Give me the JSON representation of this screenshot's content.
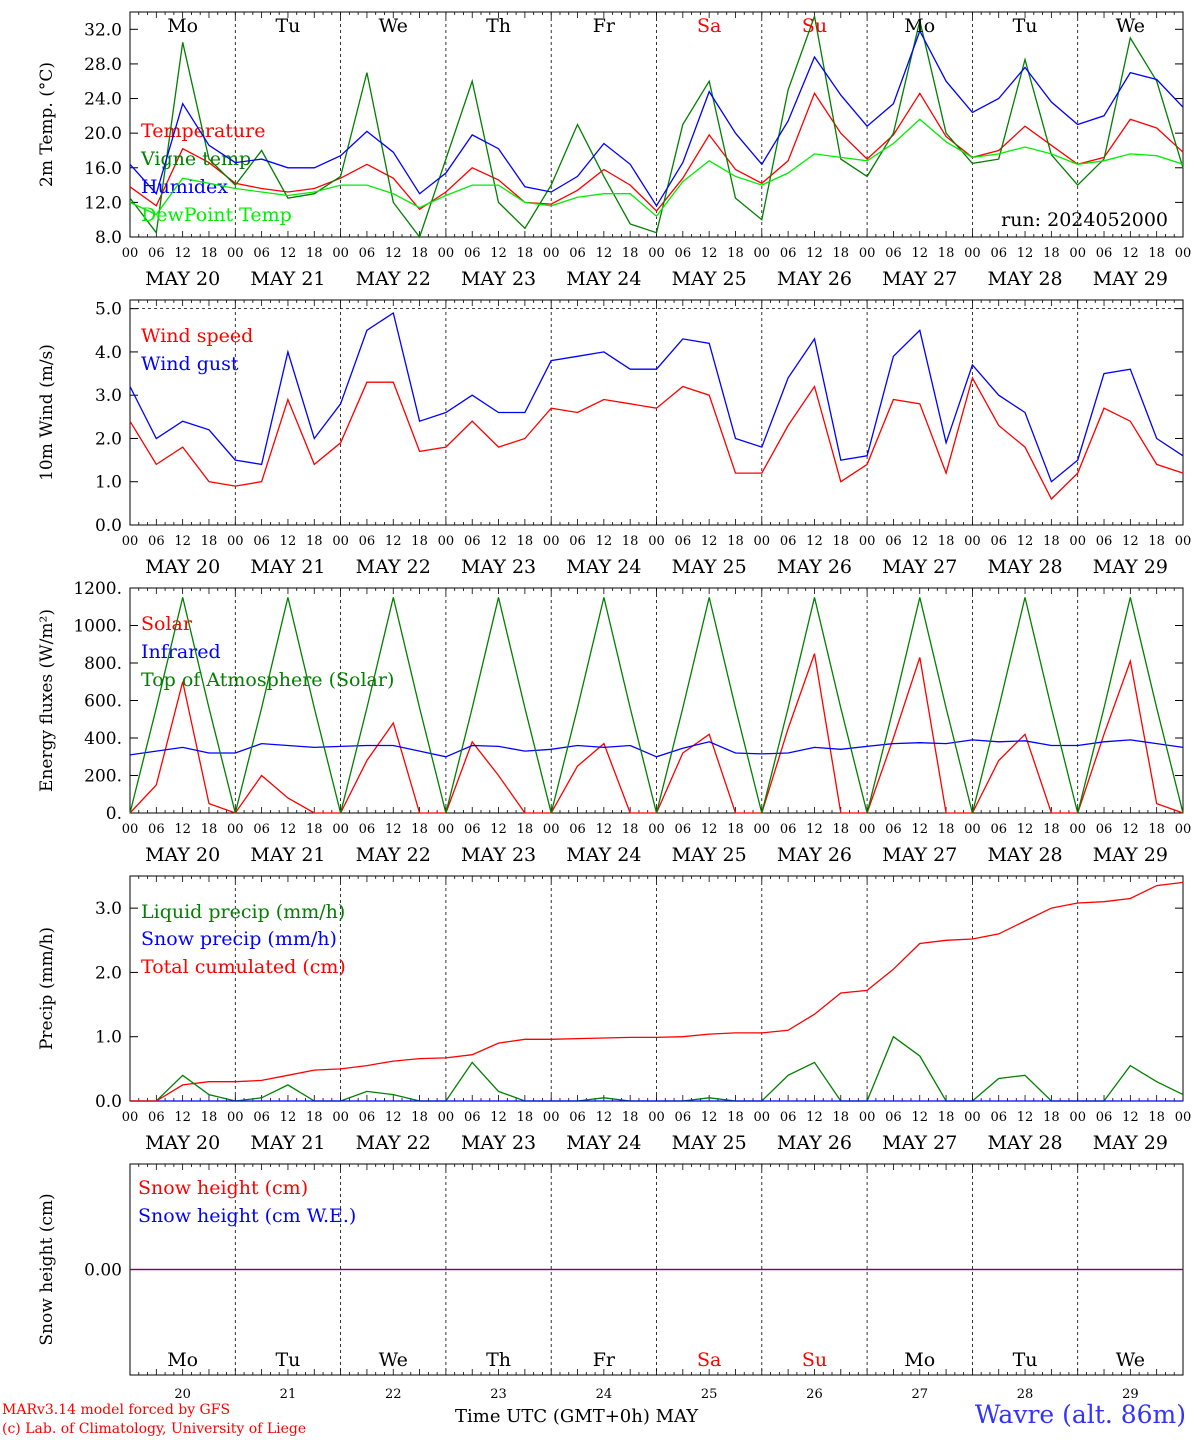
{
  "run_label": "run: 2024052000",
  "x_axis_title": "Time UTC (GMT+0h)",
  "month_label": "MAY",
  "station": "Wavre (alt. 86m)",
  "credits": [
    "MARv3.14 model forced by GFS",
    "(c) Lab. of Climatology, University of Liege"
  ],
  "days": [
    {
      "abbr": "Mo",
      "date": "MAY 20",
      "num": "20",
      "weekend": false
    },
    {
      "abbr": "Tu",
      "date": "MAY 21",
      "num": "21",
      "weekend": false
    },
    {
      "abbr": "We",
      "date": "MAY 22",
      "num": "22",
      "weekend": false
    },
    {
      "abbr": "Th",
      "date": "MAY 23",
      "num": "23",
      "weekend": false
    },
    {
      "abbr": "Fr",
      "date": "MAY 24",
      "num": "24",
      "weekend": false
    },
    {
      "abbr": "Sa",
      "date": "MAY 25",
      "num": "25",
      "weekend": true
    },
    {
      "abbr": "Su",
      "date": "MAY 26",
      "num": "26",
      "weekend": true
    },
    {
      "abbr": "Mo",
      "date": "MAY 27",
      "num": "27",
      "weekend": false
    },
    {
      "abbr": "Tu",
      "date": "MAY 28",
      "num": "28",
      "weekend": false
    },
    {
      "abbr": "We",
      "date": "MAY 29",
      "num": "29",
      "weekend": false
    }
  ],
  "hour_ticks": [
    "00",
    "06",
    "12",
    "18"
  ],
  "colors": {
    "red": "#ff0000",
    "blue": "#0000ff",
    "green": "#007f00",
    "lightgreen": "#00ee00",
    "purple": "#7f007f"
  },
  "chart_data": [
    {
      "type": "line",
      "ylabel": "2m Temp. (°C)",
      "ylim": [
        8,
        34
      ],
      "yticks": [
        "8.0",
        "12.0",
        "16.0",
        "20.0",
        "24.0",
        "28.0",
        "32.0"
      ],
      "ytick_values": [
        8,
        12,
        16,
        20,
        24,
        28,
        32
      ],
      "x_unit": "hours since May 20 00 UTC",
      "x": [
        0,
        6,
        12,
        18,
        24,
        30,
        36,
        42,
        48,
        54,
        60,
        66,
        72,
        78,
        84,
        90,
        96,
        102,
        108,
        114,
        120,
        126,
        132,
        138,
        144,
        150,
        156,
        162,
        168,
        174,
        180,
        186,
        192,
        198,
        204,
        210,
        216,
        222,
        228,
        234,
        240
      ],
      "series": [
        {
          "name": "Temperature",
          "color": "red",
          "values": [
            13.8,
            11.6,
            18.2,
            16.6,
            14.2,
            13.6,
            13.2,
            13.6,
            14.8,
            16.4,
            14.8,
            11.2,
            13.2,
            16.0,
            14.6,
            12.0,
            11.8,
            13.4,
            15.8,
            14.0,
            11.0,
            14.8,
            19.8,
            15.8,
            14.2,
            16.8,
            24.6,
            20.0,
            17.0,
            19.8,
            24.6,
            19.6,
            17.2,
            18.0,
            20.8,
            18.6,
            16.4,
            17.2,
            21.6,
            20.6,
            17.8
          ]
        },
        {
          "name": "Vigne temp",
          "color": "green",
          "values": [
            12.5,
            8.5,
            30.5,
            17.0,
            14.0,
            18.0,
            12.5,
            13.0,
            15.0,
            27.0,
            12.0,
            8.0,
            17.0,
            26.0,
            12.0,
            9.0,
            14.0,
            21.0,
            15.0,
            9.5,
            8.5,
            21.0,
            26.0,
            12.5,
            10.0,
            25.0,
            33.5,
            17.0,
            15.0,
            20.0,
            33.0,
            20.0,
            16.5,
            17.0,
            28.5,
            17.5,
            14.0,
            17.0,
            31.0,
            26.0,
            16.0
          ]
        },
        {
          "name": "Humidex",
          "color": "blue",
          "values": [
            16.4,
            13.0,
            23.4,
            18.6,
            16.6,
            17.0,
            16.0,
            16.0,
            17.4,
            20.2,
            17.8,
            13.0,
            15.4,
            19.8,
            18.2,
            13.8,
            13.2,
            15.0,
            18.8,
            16.4,
            11.6,
            16.6,
            24.8,
            20.0,
            16.4,
            21.4,
            28.8,
            24.4,
            20.8,
            23.4,
            31.8,
            26.0,
            22.4,
            24.0,
            27.6,
            23.6,
            21.0,
            22.0,
            27.0,
            26.2,
            23.0
          ]
        },
        {
          "name": "DewPoint Temp",
          "color": "lightgreen",
          "values": [
            12.0,
            10.6,
            14.8,
            14.2,
            13.6,
            13.2,
            12.8,
            13.2,
            14.0,
            14.0,
            13.0,
            11.4,
            12.8,
            14.0,
            14.0,
            12.0,
            11.6,
            12.6,
            13.0,
            13.0,
            10.4,
            14.4,
            16.8,
            15.0,
            14.0,
            15.4,
            17.6,
            17.2,
            16.8,
            18.8,
            21.6,
            19.0,
            17.2,
            17.6,
            18.4,
            17.6,
            16.4,
            16.8,
            17.6,
            17.4,
            16.4
          ]
        }
      ]
    },
    {
      "type": "line",
      "ylabel": "10m Wind (m/s)",
      "ylim": [
        0,
        5.2
      ],
      "reference_line": 5.0,
      "yticks": [
        "0.0",
        "1.0",
        "2.0",
        "3.0",
        "4.0",
        "5.0"
      ],
      "ytick_values": [
        0,
        1,
        2,
        3,
        4,
        5
      ],
      "x": [
        0,
        6,
        12,
        18,
        24,
        30,
        36,
        42,
        48,
        54,
        60,
        66,
        72,
        78,
        84,
        90,
        96,
        102,
        108,
        114,
        120,
        126,
        132,
        138,
        144,
        150,
        156,
        162,
        168,
        174,
        180,
        186,
        192,
        198,
        204,
        210,
        216,
        222,
        228,
        234,
        240
      ],
      "series": [
        {
          "name": "Wind speed",
          "color": "red",
          "values": [
            2.4,
            1.4,
            1.8,
            1.0,
            0.9,
            1.0,
            2.9,
            1.4,
            1.9,
            3.3,
            3.3,
            1.7,
            1.8,
            2.4,
            1.8,
            2.0,
            2.7,
            2.6,
            2.9,
            2.8,
            2.7,
            3.2,
            3.0,
            1.2,
            1.2,
            2.3,
            3.2,
            1.0,
            1.4,
            2.9,
            2.8,
            1.2,
            3.4,
            2.3,
            1.8,
            0.6,
            1.2,
            2.7,
            2.4,
            1.4,
            1.2
          ]
        },
        {
          "name": "Wind gust",
          "color": "blue",
          "values": [
            3.2,
            2.0,
            2.4,
            2.2,
            1.5,
            1.4,
            4.0,
            2.0,
            2.8,
            4.5,
            4.9,
            2.4,
            2.6,
            3.0,
            2.6,
            2.6,
            3.8,
            3.9,
            4.0,
            3.6,
            3.6,
            4.3,
            4.2,
            2.0,
            1.8,
            3.4,
            4.3,
            1.5,
            1.6,
            3.9,
            4.5,
            1.9,
            3.7,
            3.0,
            2.6,
            1.0,
            1.5,
            3.5,
            3.6,
            2.0,
            1.6
          ]
        }
      ]
    },
    {
      "type": "line",
      "ylabel": "Energy fluxes (W/m²)",
      "ylim": [
        0,
        1200
      ],
      "yticks": [
        "0.",
        "200.",
        "400.",
        "600.",
        "800.",
        "1000.",
        "1200."
      ],
      "ytick_values": [
        0,
        200,
        400,
        600,
        800,
        1000,
        1200
      ],
      "x": [
        0,
        6,
        12,
        18,
        24,
        30,
        36,
        42,
        48,
        54,
        60,
        66,
        72,
        78,
        84,
        90,
        96,
        102,
        108,
        114,
        120,
        126,
        132,
        138,
        144,
        150,
        156,
        162,
        168,
        174,
        180,
        186,
        192,
        198,
        204,
        210,
        216,
        222,
        228,
        234,
        240
      ],
      "series": [
        {
          "name": "Solar",
          "color": "red",
          "values": [
            0,
            150,
            700,
            50,
            0,
            200,
            80,
            0,
            0,
            280,
            480,
            0,
            0,
            380,
            200,
            0,
            0,
            250,
            370,
            0,
            0,
            320,
            420,
            0,
            0,
            450,
            850,
            0,
            0,
            400,
            830,
            0,
            0,
            280,
            420,
            0,
            0,
            420,
            810,
            50,
            0
          ]
        },
        {
          "name": "Infrared",
          "color": "blue",
          "values": [
            310,
            330,
            350,
            320,
            320,
            370,
            360,
            350,
            355,
            360,
            360,
            330,
            300,
            360,
            355,
            330,
            340,
            360,
            350,
            360,
            300,
            345,
            380,
            320,
            315,
            320,
            350,
            340,
            355,
            370,
            375,
            370,
            390,
            380,
            385,
            360,
            360,
            380,
            390,
            370,
            350
          ]
        },
        {
          "name": "Top of Atmosphere (Solar)",
          "color": "green",
          "values": [
            0,
            560,
            1150,
            560,
            0,
            560,
            1150,
            560,
            0,
            560,
            1150,
            560,
            0,
            560,
            1150,
            560,
            0,
            560,
            1150,
            560,
            0,
            560,
            1150,
            560,
            0,
            560,
            1150,
            560,
            0,
            560,
            1150,
            560,
            0,
            560,
            1150,
            560,
            0,
            560,
            1150,
            560,
            0
          ]
        }
      ]
    },
    {
      "type": "line",
      "ylabel": "Precip (mm/h)",
      "ylim": [
        0,
        3.5
      ],
      "yticks": [
        "0.0",
        "1.0",
        "2.0",
        "3.0"
      ],
      "ytick_values": [
        0,
        1,
        2,
        3
      ],
      "x": [
        0,
        6,
        12,
        18,
        24,
        30,
        36,
        42,
        48,
        54,
        60,
        66,
        72,
        78,
        84,
        90,
        96,
        102,
        108,
        114,
        120,
        126,
        132,
        138,
        144,
        150,
        156,
        162,
        168,
        174,
        180,
        186,
        192,
        198,
        204,
        210,
        216,
        222,
        228,
        234,
        240
      ],
      "series": [
        {
          "name": "Liquid precip (mm/h)",
          "color": "green",
          "values": [
            0,
            0,
            0.4,
            0.1,
            0,
            0.05,
            0.25,
            0,
            0,
            0.15,
            0.1,
            0,
            0,
            0.6,
            0.15,
            0,
            0,
            0,
            0.05,
            0,
            0,
            0,
            0.05,
            0,
            0,
            0.4,
            0.6,
            0,
            0,
            1.0,
            0.7,
            0,
            0,
            0.35,
            0.4,
            0,
            0,
            0,
            0.55,
            0.3,
            0.1
          ]
        },
        {
          "name": "Snow precip (mm/h)",
          "color": "blue",
          "values": [
            0,
            0,
            0,
            0,
            0,
            0,
            0,
            0,
            0,
            0,
            0,
            0,
            0,
            0,
            0,
            0,
            0,
            0,
            0,
            0,
            0,
            0,
            0,
            0,
            0,
            0,
            0,
            0,
            0,
            0,
            0,
            0,
            0,
            0,
            0,
            0,
            0,
            0,
            0,
            0,
            0
          ]
        },
        {
          "name": "Total cumulated (cm)",
          "color": "red",
          "values": [
            0,
            0,
            0.25,
            0.3,
            0.3,
            0.32,
            0.4,
            0.48,
            0.5,
            0.55,
            0.62,
            0.66,
            0.67,
            0.72,
            0.9,
            0.96,
            0.96,
            0.97,
            0.98,
            0.99,
            0.99,
            1.0,
            1.04,
            1.06,
            1.06,
            1.1,
            1.35,
            1.68,
            1.72,
            2.05,
            2.45,
            2.5,
            2.52,
            2.6,
            2.8,
            3.0,
            3.08,
            3.1,
            3.15,
            3.35,
            3.4
          ]
        }
      ]
    },
    {
      "type": "line",
      "ylabel": "Snow height (cm)",
      "ylim": [
        -0.5,
        0.5
      ],
      "yticks": [
        "0.00"
      ],
      "ytick_values": [
        0
      ],
      "x": [
        0,
        240
      ],
      "series": [
        {
          "name": "Snow height (cm)",
          "color": "red",
          "values": [
            0,
            0
          ]
        },
        {
          "name": "Snow height (cm W.E.)",
          "color": "blue",
          "values": [
            0,
            0
          ]
        }
      ]
    }
  ]
}
